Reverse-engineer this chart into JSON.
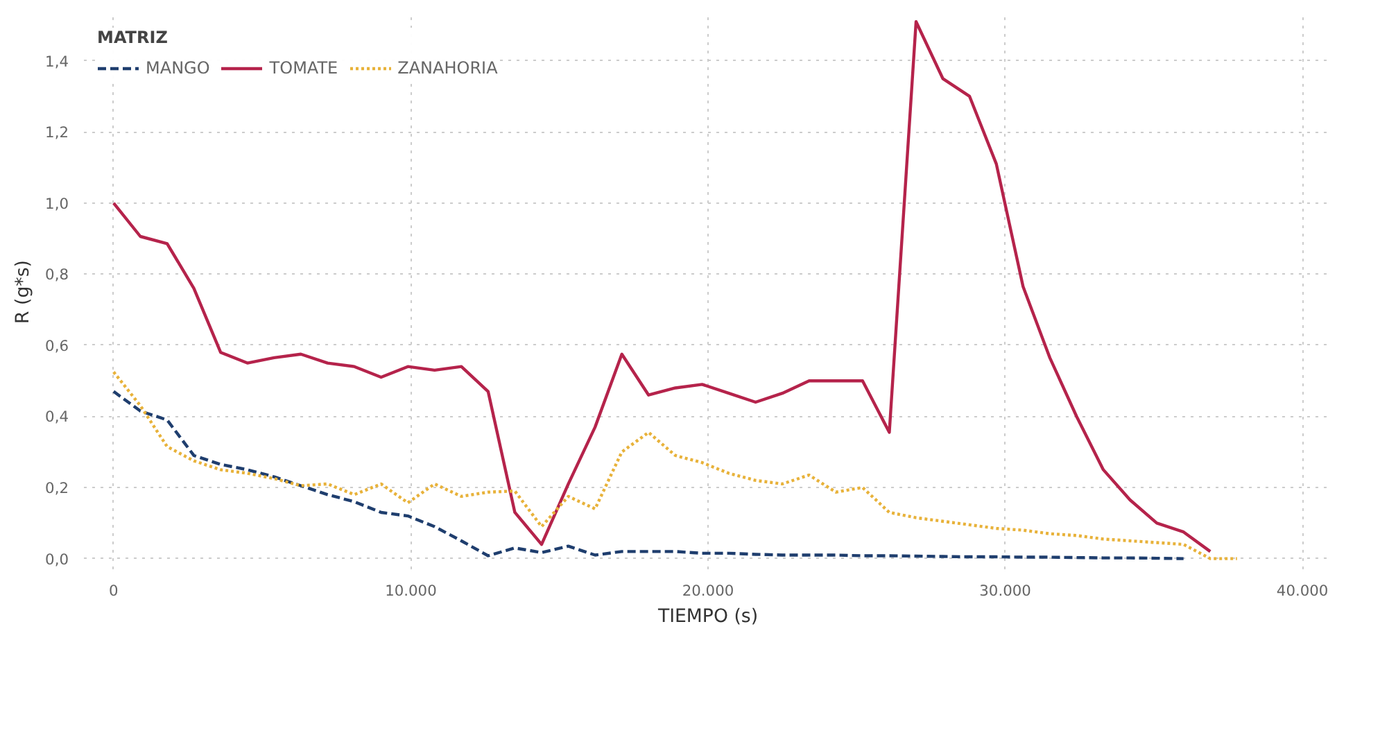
{
  "chart_data": {
    "type": "line",
    "xlabel": "TIEMPO (s)",
    "ylabel": "R (g*s)",
    "legend_title": "MATRIZ",
    "legend": "top",
    "grid": true,
    "xlim": [
      -1000,
      41000
    ],
    "ylim": [
      -0.03,
      1.53
    ],
    "xticks": [
      0,
      {
        "value": 10000,
        "label": "10.000"
      },
      {
        "value": 20000,
        "label": "20.000"
      },
      {
        "value": 30000,
        "label": "30.000"
      },
      {
        "value": 40000,
        "label": "40.000"
      }
    ],
    "yticks": [
      {
        "value": 0,
        "label": "0,0"
      },
      {
        "value": 0.2,
        "label": "0,2"
      },
      {
        "value": 0.4,
        "label": "0,4"
      },
      {
        "value": 0.6,
        "label": "0,6"
      },
      {
        "value": 0.8,
        "label": "0,8"
      },
      {
        "value": 1.0,
        "label": "1,0"
      },
      {
        "value": 1.2,
        "label": "1,2"
      },
      {
        "value": 1.4,
        "label": "1,4"
      }
    ],
    "series": [
      {
        "name": "MANGO",
        "color": "#1f3e6e",
        "line_style": "dashed",
        "x": [
          0,
          900,
          1800,
          2700,
          3600,
          4500,
          5400,
          6300,
          7200,
          8100,
          9000,
          9900,
          10800,
          11700,
          12600,
          13500,
          14400,
          15300,
          16200,
          17100,
          18000,
          18900,
          19800,
          20700,
          21600,
          22500,
          23400,
          24300,
          25200,
          26100,
          27000,
          27900,
          28800,
          29700,
          30600,
          31500,
          32400,
          33300,
          34200,
          35100,
          36000
        ],
        "values": [
          0.47,
          0.415,
          0.39,
          0.29,
          0.265,
          0.25,
          0.23,
          0.205,
          0.18,
          0.16,
          0.13,
          0.12,
          0.09,
          0.05,
          0.008,
          0.03,
          0.017,
          0.035,
          0.01,
          0.02,
          0.02,
          0.02,
          0.015,
          0.015,
          0.012,
          0.01,
          0.01,
          0.01,
          0.008,
          0.008,
          0.007,
          0.006,
          0.005,
          0.005,
          0.004,
          0.004,
          0.003,
          0.002,
          0.002,
          0.001,
          0.0
        ]
      },
      {
        "name": "TOMATE",
        "color": "#b5234b",
        "line_style": "solid",
        "x": [
          0,
          900,
          1800,
          2700,
          3600,
          4500,
          5400,
          6300,
          7200,
          8100,
          9000,
          9900,
          10800,
          11700,
          12600,
          13500,
          14400,
          15300,
          16200,
          17100,
          18000,
          18900,
          19800,
          20700,
          21600,
          22500,
          23400,
          24300,
          25200,
          26100,
          27000,
          27900,
          28800,
          29700,
          30600,
          31500,
          32400,
          33300,
          34200,
          35100,
          36000,
          36900
        ],
        "values": [
          1.0,
          0.906,
          0.886,
          0.76,
          0.58,
          0.55,
          0.565,
          0.575,
          0.55,
          0.54,
          0.51,
          0.54,
          0.53,
          0.54,
          0.47,
          0.13,
          0.04,
          0.21,
          0.37,
          0.575,
          0.46,
          0.48,
          0.49,
          0.465,
          0.44,
          0.465,
          0.5,
          0.5,
          0.5,
          0.355,
          1.51,
          1.35,
          1.3,
          1.11,
          0.765,
          0.565,
          0.4,
          0.25,
          0.165,
          0.1,
          0.075,
          0.02
        ]
      },
      {
        "name": "ZANAHORIA",
        "color": "#e8b23a",
        "line_style": "dotted",
        "x": [
          0,
          900,
          1800,
          2700,
          3600,
          4500,
          5400,
          6300,
          7200,
          8100,
          9000,
          9900,
          10800,
          11700,
          12600,
          13500,
          14400,
          15300,
          16200,
          17100,
          18000,
          18900,
          19800,
          20700,
          21600,
          22500,
          23400,
          24300,
          25200,
          26100,
          27000,
          27900,
          28800,
          29700,
          30600,
          31500,
          32400,
          33300,
          34200,
          35100,
          36000,
          36900,
          37800
        ],
        "values": [
          0.525,
          0.43,
          0.315,
          0.275,
          0.25,
          0.24,
          0.225,
          0.205,
          0.21,
          0.18,
          0.21,
          0.157,
          0.21,
          0.175,
          0.187,
          0.19,
          0.09,
          0.175,
          0.14,
          0.3,
          0.355,
          0.29,
          0.27,
          0.24,
          0.22,
          0.21,
          0.235,
          0.187,
          0.2,
          0.13,
          0.115,
          0.105,
          0.095,
          0.085,
          0.08,
          0.07,
          0.065,
          0.055,
          0.05,
          0.045,
          0.04,
          0.0,
          0.0
        ]
      }
    ]
  }
}
